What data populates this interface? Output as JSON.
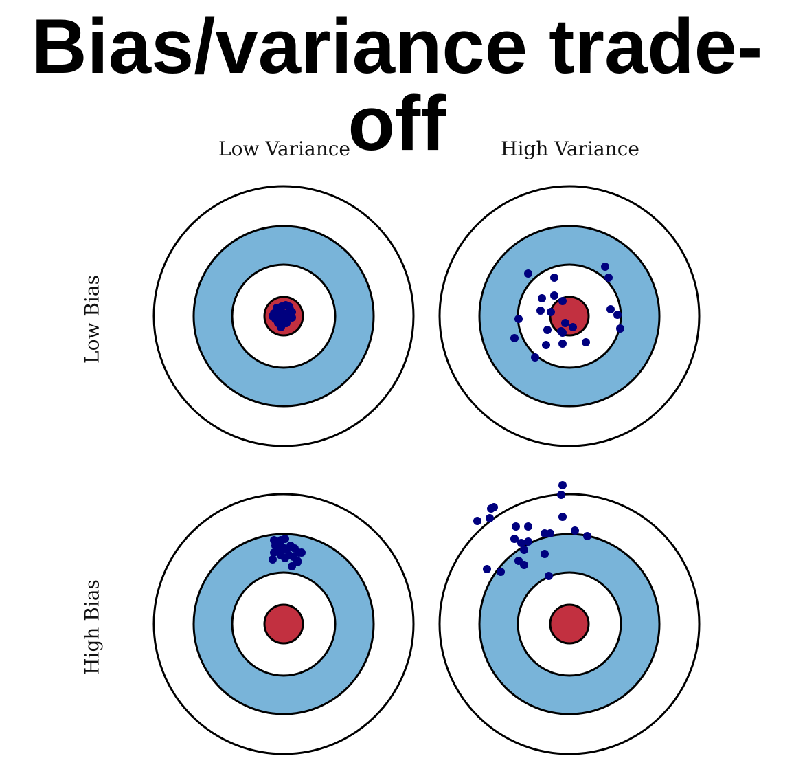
{
  "title": "Bias/variance trade-off",
  "column_labels": {
    "low_variance": "Low Variance",
    "high_variance": "High Variance"
  },
  "row_labels": {
    "low_bias": "Low Bias",
    "high_bias": "High Bias"
  },
  "colors": {
    "ring_fill": "#ffffff",
    "band_fill": "#79b4d9",
    "bullseye_fill": "#c23040",
    "stroke": "#000000",
    "dot_fill": "#00007f"
  },
  "targets": [
    {
      "name": "target-low-bias-low-variance",
      "hits": [
        [
          -10,
          -12
        ],
        [
          -3,
          -14
        ],
        [
          3,
          -16
        ],
        [
          9,
          -10
        ],
        [
          -14,
          -4
        ],
        [
          -8,
          -2
        ],
        [
          -2,
          -5
        ],
        [
          5,
          -4
        ],
        [
          12,
          -6
        ],
        [
          -12,
          4
        ],
        [
          -6,
          6
        ],
        [
          0,
          2
        ],
        [
          6,
          3
        ],
        [
          12,
          2
        ],
        [
          -8,
          10
        ],
        [
          -2,
          12
        ],
        [
          4,
          10
        ],
        [
          -16,
          0
        ],
        [
          8,
          -14
        ],
        [
          -4,
          16
        ]
      ]
    },
    {
      "name": "target-low-bias-high-variance",
      "hits": [
        [
          52,
          -72
        ],
        [
          57,
          -56
        ],
        [
          -60,
          -62
        ],
        [
          -22,
          -56
        ],
        [
          -40,
          -26
        ],
        [
          -22,
          -30
        ],
        [
          -10,
          -22
        ],
        [
          -42,
          -8
        ],
        [
          -27,
          -6
        ],
        [
          -74,
          4
        ],
        [
          -6,
          10
        ],
        [
          5,
          16
        ],
        [
          -12,
          22
        ],
        [
          -32,
          20
        ],
        [
          -10,
          24
        ],
        [
          -80,
          32
        ],
        [
          -34,
          42
        ],
        [
          -10,
          40
        ],
        [
          24,
          38
        ],
        [
          -50,
          60
        ],
        [
          60,
          -10
        ],
        [
          70,
          -2
        ],
        [
          74,
          18
        ]
      ]
    },
    {
      "name": "target-high-bias-low-variance",
      "hits": [
        [
          -14,
          -122
        ],
        [
          -4,
          -122
        ],
        [
          2,
          -124
        ],
        [
          -12,
          -114
        ],
        [
          -2,
          -112
        ],
        [
          4,
          -108
        ],
        [
          10,
          -114
        ],
        [
          16,
          -110
        ],
        [
          22,
          -104
        ],
        [
          -14,
          -104
        ],
        [
          -4,
          -100
        ],
        [
          2,
          -96
        ],
        [
          8,
          -100
        ],
        [
          14,
          -98
        ],
        [
          20,
          -92
        ],
        [
          26,
          -104
        ],
        [
          -16,
          -94
        ],
        [
          12,
          -84
        ],
        [
          20,
          -90
        ],
        [
          -6,
          -106
        ]
      ]
    },
    {
      "name": "target-high-bias-high-variance",
      "hits": [
        [
          -10,
          -202
        ],
        [
          -12,
          -188
        ],
        [
          -110,
          -170
        ],
        [
          -114,
          -168
        ],
        [
          -134,
          -150
        ],
        [
          -116,
          -154
        ],
        [
          -78,
          -142
        ],
        [
          -60,
          -142
        ],
        [
          -80,
          -124
        ],
        [
          -60,
          -120
        ],
        [
          -70,
          -118
        ],
        [
          -66,
          -108
        ],
        [
          -36,
          -132
        ],
        [
          -28,
          -132
        ],
        [
          -36,
          -102
        ],
        [
          -10,
          -156
        ],
        [
          8,
          -136
        ],
        [
          26,
          -128
        ],
        [
          -120,
          -80
        ],
        [
          -100,
          -76
        ],
        [
          -74,
          -92
        ],
        [
          -66,
          -86
        ],
        [
          -30,
          -70
        ]
      ]
    }
  ]
}
